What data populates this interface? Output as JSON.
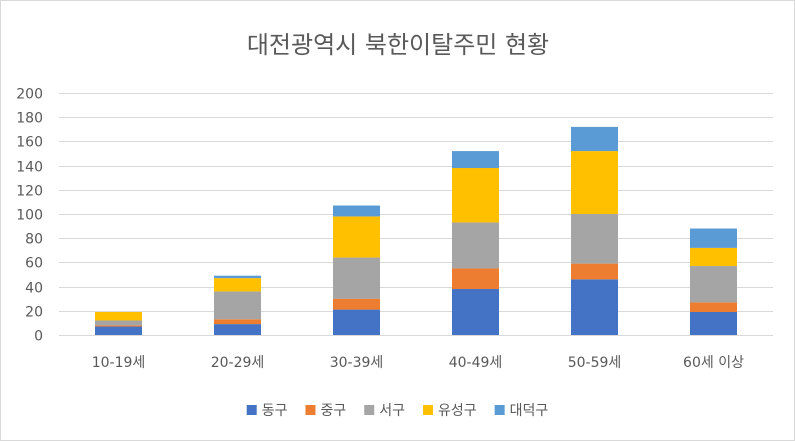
{
  "chart_data": {
    "type": "bar",
    "stacked": true,
    "title": "대전광역시 북한이탈주민 현황",
    "categories": [
      "10-19세",
      "20-29세",
      "30-39세",
      "40-49세",
      "50-59세",
      "60세 이상"
    ],
    "series": [
      {
        "name": "동구",
        "color": "#4472C4",
        "values": [
          7,
          9,
          21,
          38,
          46,
          19
        ]
      },
      {
        "name": "중구",
        "color": "#ED7D31",
        "values": [
          1,
          4,
          9,
          17,
          13,
          8
        ]
      },
      {
        "name": "서구",
        "color": "#A5A5A5",
        "values": [
          4,
          23,
          34,
          38,
          41,
          30
        ]
      },
      {
        "name": "유성구",
        "color": "#FFC000",
        "values": [
          7,
          11,
          34,
          45,
          52,
          15
        ]
      },
      {
        "name": "대덕구",
        "color": "#5B9BD5",
        "values": [
          0,
          2,
          9,
          14,
          20,
          16
        ]
      }
    ],
    "ylim": [
      0,
      200
    ],
    "yticks": [
      0,
      20,
      40,
      60,
      80,
      100,
      120,
      140,
      160,
      180,
      200
    ],
    "grid": true,
    "legend_position": "bottom",
    "xlabel": "",
    "ylabel": ""
  }
}
